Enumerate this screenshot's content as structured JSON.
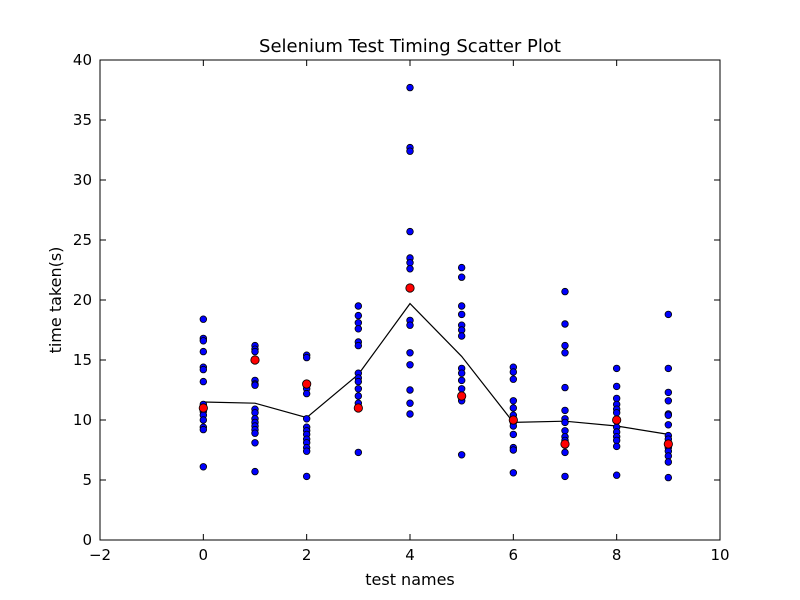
{
  "chart_data": {
    "type": "scatter",
    "title": "Selenium Test Timing Scatter Plot",
    "xlabel": "test names",
    "ylabel": "time taken(s)",
    "xlim": [
      -2,
      10
    ],
    "ylim": [
      0,
      40
    ],
    "xticks": [
      -2,
      0,
      2,
      4,
      6,
      8,
      10
    ],
    "yticks": [
      0,
      5,
      10,
      15,
      20,
      25,
      30,
      35,
      40
    ],
    "xtick_labels": [
      "−2",
      "0",
      "2",
      "4",
      "6",
      "8",
      "10"
    ],
    "ytick_labels": [
      "0",
      "5",
      "10",
      "15",
      "20",
      "25",
      "30",
      "35",
      "40"
    ],
    "grid": false,
    "series": [
      {
        "kind": "scatter",
        "color": "#0000ff",
        "points": [
          [
            0,
            18.4
          ],
          [
            0,
            16.8
          ],
          [
            0,
            16.6
          ],
          [
            0,
            15.7
          ],
          [
            0,
            14.4
          ],
          [
            0,
            14.2
          ],
          [
            0,
            13.2
          ],
          [
            0,
            11.3
          ],
          [
            0,
            10.7
          ],
          [
            0,
            10.4
          ],
          [
            0,
            10.0
          ],
          [
            0,
            9.4
          ],
          [
            0,
            9.2
          ],
          [
            0,
            6.1
          ],
          [
            1,
            16.2
          ],
          [
            1,
            15.9
          ],
          [
            1,
            15.7
          ],
          [
            1,
            13.3
          ],
          [
            1,
            13.0
          ],
          [
            1,
            12.9
          ],
          [
            1,
            10.9
          ],
          [
            1,
            10.6
          ],
          [
            1,
            10.1
          ],
          [
            1,
            9.8
          ],
          [
            1,
            9.5
          ],
          [
            1,
            9.2
          ],
          [
            1,
            8.9
          ],
          [
            1,
            8.1
          ],
          [
            1,
            5.7
          ],
          [
            2,
            15.4
          ],
          [
            2,
            15.2
          ],
          [
            2,
            12.6
          ],
          [
            2,
            12.2
          ],
          [
            2,
            10.1
          ],
          [
            2,
            9.4
          ],
          [
            2,
            9.1
          ],
          [
            2,
            8.8
          ],
          [
            2,
            8.4
          ],
          [
            2,
            8.1
          ],
          [
            2,
            7.7
          ],
          [
            2,
            7.4
          ],
          [
            2,
            5.3
          ],
          [
            3,
            19.5
          ],
          [
            3,
            18.7
          ],
          [
            3,
            18.1
          ],
          [
            3,
            17.6
          ],
          [
            3,
            16.5
          ],
          [
            3,
            16.2
          ],
          [
            3,
            13.9
          ],
          [
            3,
            13.5
          ],
          [
            3,
            13.2
          ],
          [
            3,
            12.6
          ],
          [
            3,
            12.0
          ],
          [
            3,
            11.4
          ],
          [
            3,
            7.3
          ],
          [
            4,
            37.7
          ],
          [
            4,
            32.7
          ],
          [
            4,
            32.4
          ],
          [
            4,
            25.7
          ],
          [
            4,
            23.5
          ],
          [
            4,
            23.1
          ],
          [
            4,
            22.6
          ],
          [
            4,
            18.3
          ],
          [
            4,
            17.9
          ],
          [
            4,
            15.6
          ],
          [
            4,
            14.6
          ],
          [
            4,
            12.5
          ],
          [
            4,
            11.4
          ],
          [
            4,
            10.5
          ],
          [
            5,
            22.7
          ],
          [
            5,
            21.9
          ],
          [
            5,
            19.5
          ],
          [
            5,
            18.8
          ],
          [
            5,
            17.9
          ],
          [
            5,
            17.5
          ],
          [
            5,
            17.0
          ],
          [
            5,
            14.3
          ],
          [
            5,
            13.9
          ],
          [
            5,
            13.3
          ],
          [
            5,
            12.6
          ],
          [
            5,
            12.0
          ],
          [
            5,
            11.6
          ],
          [
            5,
            7.1
          ],
          [
            6,
            14.4
          ],
          [
            6,
            14.0
          ],
          [
            6,
            13.4
          ],
          [
            6,
            11.6
          ],
          [
            6,
            11.0
          ],
          [
            6,
            10.4
          ],
          [
            6,
            9.8
          ],
          [
            6,
            9.5
          ],
          [
            6,
            8.8
          ],
          [
            6,
            7.7
          ],
          [
            6,
            7.5
          ],
          [
            6,
            5.6
          ],
          [
            7,
            20.7
          ],
          [
            7,
            18.0
          ],
          [
            7,
            16.2
          ],
          [
            7,
            15.6
          ],
          [
            7,
            12.7
          ],
          [
            7,
            10.8
          ],
          [
            7,
            10.1
          ],
          [
            7,
            9.8
          ],
          [
            7,
            9.1
          ],
          [
            7,
            8.6
          ],
          [
            7,
            8.3
          ],
          [
            7,
            7.9
          ],
          [
            7,
            7.3
          ],
          [
            7,
            5.3
          ],
          [
            8,
            14.3
          ],
          [
            8,
            12.8
          ],
          [
            8,
            11.8
          ],
          [
            8,
            11.3
          ],
          [
            8,
            10.9
          ],
          [
            8,
            10.6
          ],
          [
            8,
            9.9
          ],
          [
            8,
            9.4
          ],
          [
            8,
            9.0
          ],
          [
            8,
            8.6
          ],
          [
            8,
            8.3
          ],
          [
            8,
            7.8
          ],
          [
            8,
            5.4
          ],
          [
            9,
            18.8
          ],
          [
            9,
            14.3
          ],
          [
            9,
            12.3
          ],
          [
            9,
            11.6
          ],
          [
            9,
            10.5
          ],
          [
            9,
            10.4
          ],
          [
            9,
            9.6
          ],
          [
            9,
            8.7
          ],
          [
            9,
            8.4
          ],
          [
            9,
            7.7
          ],
          [
            9,
            7.4
          ],
          [
            9,
            7.0
          ],
          [
            9,
            6.5
          ],
          [
            9,
            5.2
          ]
        ]
      },
      {
        "kind": "scatter",
        "color": "#ff0000",
        "points": [
          [
            0,
            11.0
          ],
          [
            1,
            15.0
          ],
          [
            2,
            13.0
          ],
          [
            3,
            11.0
          ],
          [
            4,
            21.0
          ],
          [
            5,
            12.0
          ],
          [
            6,
            10.0
          ],
          [
            7,
            8.0
          ],
          [
            8,
            10.0
          ],
          [
            9,
            8.0
          ]
        ]
      },
      {
        "kind": "line",
        "color": "#000000",
        "points": [
          [
            0,
            11.5
          ],
          [
            1,
            11.4
          ],
          [
            2,
            10.2
          ],
          [
            3,
            13.8
          ],
          [
            4,
            19.7
          ],
          [
            5,
            15.3
          ],
          [
            6,
            9.8
          ],
          [
            7,
            9.9
          ],
          [
            8,
            9.5
          ],
          [
            9,
            8.8
          ]
        ]
      }
    ]
  }
}
